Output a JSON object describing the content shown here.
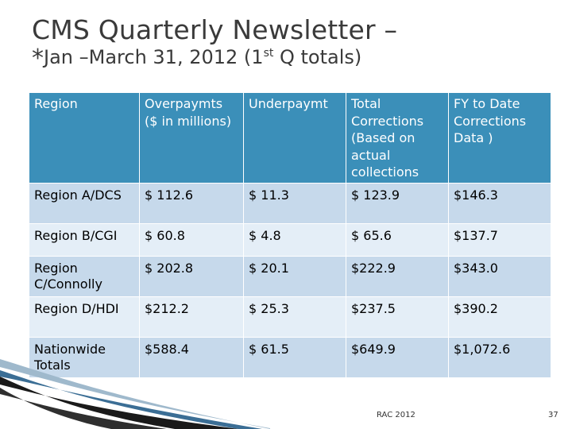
{
  "title": {
    "line1": "CMS Quarterly Newsletter –",
    "line2_star": "*",
    "line2_pre": "Jan –March 31, 2012  (1",
    "line2_sup": "st",
    "line2_post": " Q totals)"
  },
  "table": {
    "headers": [
      "Region",
      "Overpaymts ($ in millions)",
      "Underpaymt",
      "Total Corrections (Based on actual collections",
      "FY to Date Corrections Data )"
    ],
    "rows": [
      [
        "Region A/DCS",
        "$ 112.6",
        "$  11.3",
        "$ 123.9",
        "$146.3"
      ],
      [
        "Region B/CGI",
        "$ 60.8",
        "$  4.8",
        "$ 65.6",
        "$137.7"
      ],
      [
        "Region C/Connolly",
        "$ 202.8",
        "$ 20.1",
        "$222.9",
        "$343.0"
      ],
      [
        "Region D/HDI",
        "$212.2",
        "$ 25.3",
        "$237.5",
        "$390.2"
      ],
      [
        "Nationwide Totals",
        "$588.4",
        "$ 61.5",
        "$649.9",
        "$1,072.6"
      ]
    ]
  },
  "footer": {
    "center_text": "RAC 2012",
    "page_number": "37"
  },
  "colors": {
    "header_bg": "#3b8fb9",
    "row_dark": "#c6d9eb",
    "row_light": "#e4eef7"
  }
}
